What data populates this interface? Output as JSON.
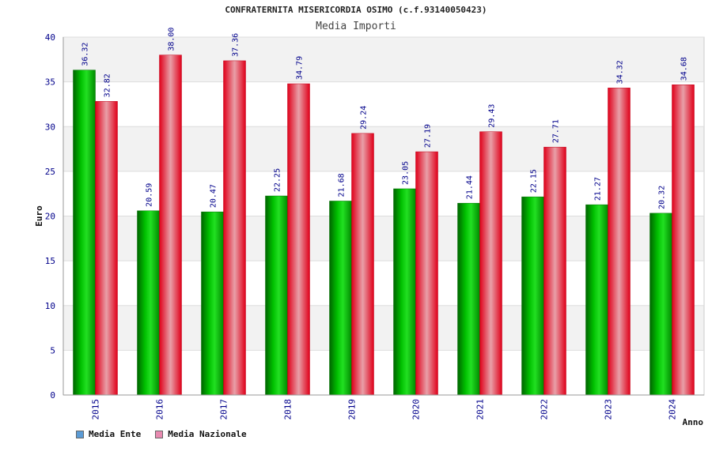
{
  "title": "CONFRATERNITA MISERICORDIA OSIMO (c.f.93140050423)",
  "subtitle": "Media Importi",
  "legend": [
    {
      "label": "Media Ente",
      "color": "#5b9bd5"
    },
    {
      "label": "Media Nazionale",
      "color": "#e88ab0"
    }
  ],
  "chart_data": {
    "type": "bar",
    "title": "CONFRATERNITA MISERICORDIA OSIMO (c.f.93140050423)",
    "subtitle": "Media Importi",
    "xlabel": "Anno",
    "ylabel": "Euro",
    "ylim": [
      0,
      40
    ],
    "yticks": [
      0,
      5,
      10,
      15,
      20,
      25,
      30,
      35,
      40
    ],
    "categories": [
      "2015",
      "2016",
      "2017",
      "2018",
      "2019",
      "2020",
      "2021",
      "2022",
      "2023",
      "2024"
    ],
    "series": [
      {
        "name": "Media Ente",
        "color": "#00b400",
        "values": [
          36.32,
          20.59,
          20.47,
          22.25,
          21.68,
          23.05,
          21.44,
          22.15,
          21.27,
          20.32
        ]
      },
      {
        "name": "Media Nazionale",
        "color": "#e8001c",
        "values": [
          32.82,
          38.0,
          37.36,
          34.79,
          29.24,
          27.19,
          29.43,
          27.71,
          34.32,
          34.68
        ]
      }
    ],
    "data_labels": [
      [
        "36.32",
        "20.59",
        "20.47",
        "22.25",
        "21.68",
        "23.05",
        "21.44",
        "22.15",
        "21.27",
        "20.32"
      ],
      [
        "32.82",
        "38.00",
        "37.36",
        "34.79",
        "29.24",
        "27.19",
        "29.43",
        "27.71",
        "34.32",
        "34.68"
      ]
    ],
    "grid": true,
    "legend_position": "bottom-left"
  }
}
